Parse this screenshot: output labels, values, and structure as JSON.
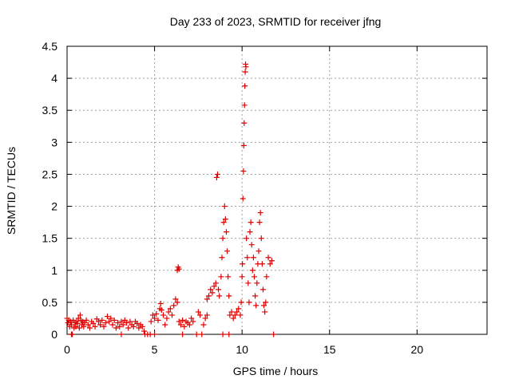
{
  "chart_data": {
    "type": "scatter",
    "title": "Day 233 of 2023, SRMTID for receiver jfng",
    "xlabel": "GPS time / hours",
    "ylabel": "SRMTID / TECUs",
    "xlim": [
      0,
      24
    ],
    "ylim": [
      0,
      4.5
    ],
    "xticks": [
      0,
      5,
      10,
      15,
      20
    ],
    "xtick_labels": [
      "0",
      "5",
      "10",
      "15",
      "20"
    ],
    "yticks": [
      0,
      0.5,
      1,
      1.5,
      2,
      2.5,
      3,
      3.5,
      4,
      4.5
    ],
    "ytick_labels": [
      "0",
      "0.5",
      "1",
      "1.5",
      "2",
      "2.5",
      "3",
      "3.5",
      "4",
      "4.5"
    ],
    "grid": true,
    "marker": "+",
    "color": "#e00000",
    "series": [
      {
        "name": "SRMTID",
        "points": [
          [
            0.0,
            0.25
          ],
          [
            0.05,
            0.18
          ],
          [
            0.1,
            0.22
          ],
          [
            0.15,
            0.12
          ],
          [
            0.2,
            0.2
          ],
          [
            0.25,
            0.15
          ],
          [
            0.3,
            0.0
          ],
          [
            0.35,
            0.22
          ],
          [
            0.4,
            0.1
          ],
          [
            0.45,
            0.18
          ],
          [
            0.5,
            0.12
          ],
          [
            0.55,
            0.2
          ],
          [
            0.6,
            0.17
          ],
          [
            0.65,
            0.25
          ],
          [
            0.7,
            0.1
          ],
          [
            0.75,
            0.3
          ],
          [
            0.8,
            0.22
          ],
          [
            0.85,
            0.15
          ],
          [
            0.9,
            0.2
          ],
          [
            0.95,
            0.12
          ],
          [
            1.0,
            0.18
          ],
          [
            1.1,
            0.22
          ],
          [
            1.2,
            0.15
          ],
          [
            1.3,
            0.1
          ],
          [
            1.4,
            0.2
          ],
          [
            1.5,
            0.17
          ],
          [
            1.6,
            0.12
          ],
          [
            1.7,
            0.24
          ],
          [
            1.8,
            0.2
          ],
          [
            1.9,
            0.15
          ],
          [
            2.0,
            0.22
          ],
          [
            2.1,
            0.12
          ],
          [
            2.2,
            0.18
          ],
          [
            2.3,
            0.28
          ],
          [
            2.4,
            0.2
          ],
          [
            2.5,
            0.25
          ],
          [
            2.6,
            0.15
          ],
          [
            2.7,
            0.22
          ],
          [
            2.8,
            0.1
          ],
          [
            2.9,
            0.18
          ],
          [
            3.0,
            0.12
          ],
          [
            3.1,
            0.2
          ],
          [
            3.2,
            0.15
          ],
          [
            3.3,
            0.22
          ],
          [
            3.4,
            0.18
          ],
          [
            3.5,
            0.1
          ],
          [
            3.6,
            0.2
          ],
          [
            3.7,
            0.15
          ],
          [
            3.8,
            0.12
          ],
          [
            3.9,
            0.2
          ],
          [
            4.0,
            0.17
          ],
          [
            4.1,
            0.1
          ],
          [
            4.2,
            0.15
          ],
          [
            4.3,
            0.12
          ],
          [
            4.4,
            0.05
          ],
          [
            4.45,
            0.0
          ],
          [
            4.6,
            0.0
          ],
          [
            4.75,
            0.0
          ],
          [
            4.8,
            0.2
          ],
          [
            4.9,
            0.3
          ],
          [
            5.0,
            0.25
          ],
          [
            5.1,
            0.32
          ],
          [
            5.2,
            0.22
          ],
          [
            5.3,
            0.4
          ],
          [
            5.35,
            0.48
          ],
          [
            5.4,
            0.38
          ],
          [
            5.5,
            0.3
          ],
          [
            5.6,
            0.15
          ],
          [
            5.7,
            0.25
          ],
          [
            5.8,
            0.35
          ],
          [
            5.9,
            0.4
          ],
          [
            6.0,
            0.3
          ],
          [
            6.1,
            0.45
          ],
          [
            6.2,
            0.55
          ],
          [
            6.3,
            0.5
          ],
          [
            6.3,
            1.0
          ],
          [
            6.35,
            1.05
          ],
          [
            6.4,
            1.02
          ],
          [
            6.4,
            0.2
          ],
          [
            6.5,
            0.15
          ],
          [
            6.6,
            0.22
          ],
          [
            6.7,
            0.12
          ],
          [
            6.8,
            0.2
          ],
          [
            6.9,
            0.18
          ],
          [
            7.0,
            0.15
          ],
          [
            7.1,
            0.25
          ],
          [
            7.2,
            0.2
          ],
          [
            7.4,
            0.0
          ],
          [
            7.5,
            0.35
          ],
          [
            7.6,
            0.3
          ],
          [
            7.7,
            0.0
          ],
          [
            7.8,
            0.15
          ],
          [
            7.9,
            0.25
          ],
          [
            8.0,
            0.3
          ],
          [
            8.0,
            0.55
          ],
          [
            8.1,
            0.6
          ],
          [
            8.2,
            0.7
          ],
          [
            8.3,
            0.65
          ],
          [
            8.4,
            0.75
          ],
          [
            8.5,
            0.8
          ],
          [
            8.55,
            2.45
          ],
          [
            8.6,
            2.5
          ],
          [
            8.65,
            0.7
          ],
          [
            8.7,
            0.6
          ],
          [
            8.8,
            0.9
          ],
          [
            8.85,
            1.2
          ],
          [
            8.9,
            1.5
          ],
          [
            8.95,
            1.75
          ],
          [
            9.0,
            2.0
          ],
          [
            9.05,
            1.8
          ],
          [
            9.1,
            1.6
          ],
          [
            9.15,
            1.3
          ],
          [
            9.2,
            0.9
          ],
          [
            9.25,
            0.6
          ],
          [
            9.3,
            0.3
          ],
          [
            9.4,
            0.35
          ],
          [
            9.5,
            0.25
          ],
          [
            9.6,
            0.3
          ],
          [
            9.7,
            0.35
          ],
          [
            9.8,
            0.4
          ],
          [
            9.9,
            0.3
          ],
          [
            9.95,
            0.5
          ],
          [
            10.0,
            0.9
          ],
          [
            10.02,
            1.1
          ],
          [
            10.05,
            2.12
          ],
          [
            10.08,
            2.55
          ],
          [
            10.1,
            2.95
          ],
          [
            10.12,
            3.3
          ],
          [
            10.14,
            3.58
          ],
          [
            10.16,
            3.88
          ],
          [
            10.18,
            4.1
          ],
          [
            10.2,
            4.22
          ],
          [
            10.22,
            4.18
          ],
          [
            10.25,
            1.5
          ],
          [
            10.3,
            1.2
          ],
          [
            10.35,
            0.8
          ],
          [
            10.4,
            0.5
          ],
          [
            10.45,
            1.6
          ],
          [
            10.5,
            1.75
          ],
          [
            10.55,
            1.4
          ],
          [
            10.6,
            1.0
          ],
          [
            10.65,
            1.2
          ],
          [
            10.7,
            0.9
          ],
          [
            10.75,
            0.6
          ],
          [
            10.8,
            0.45
          ],
          [
            10.85,
            0.8
          ],
          [
            10.9,
            1.1
          ],
          [
            10.95,
            1.3
          ],
          [
            11.0,
            1.75
          ],
          [
            11.05,
            1.9
          ],
          [
            11.1,
            1.5
          ],
          [
            11.15,
            1.1
          ],
          [
            11.2,
            0.7
          ],
          [
            11.25,
            0.45
          ],
          [
            11.3,
            0.35
          ],
          [
            11.35,
            0.5
          ],
          [
            11.4,
            0.9
          ],
          [
            11.5,
            1.2
          ],
          [
            11.6,
            1.1
          ],
          [
            11.7,
            1.15
          ],
          [
            11.8,
            0.0
          ],
          [
            9.25,
            0.0
          ],
          [
            8.9,
            0.0
          ],
          [
            5.0,
            0.0
          ],
          [
            6.6,
            0.0
          ],
          [
            3.1,
            0.0
          ],
          [
            0.25,
            0.0
          ]
        ]
      }
    ]
  }
}
